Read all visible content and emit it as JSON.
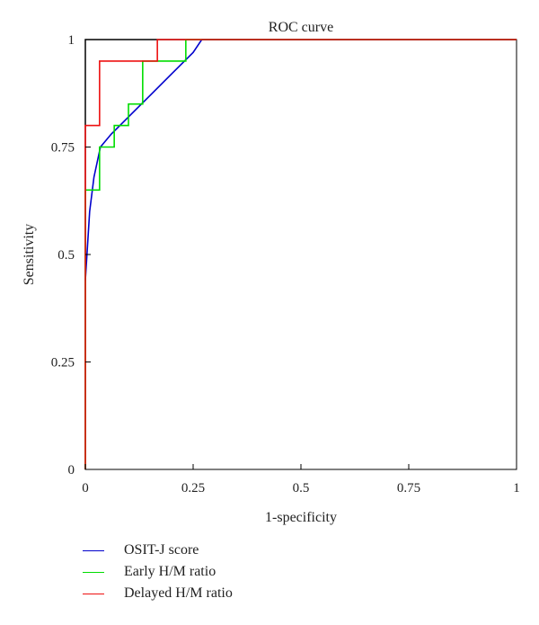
{
  "chart_data": {
    "type": "line",
    "title": "ROC curve",
    "xlabel": "1-specificity",
    "ylabel": "Sensitivity",
    "xlim": [
      0,
      1
    ],
    "ylim": [
      0,
      1
    ],
    "x_ticks": [
      0,
      0.25,
      0.5,
      0.75,
      1
    ],
    "y_ticks": [
      0,
      0.25,
      0.5,
      0.75,
      1
    ],
    "x_tick_labels": [
      "0",
      "0.25",
      "0.5",
      "0.75",
      "1"
    ],
    "y_tick_labels": [
      "0",
      "0.25",
      "0.5",
      "0.75",
      "1"
    ],
    "grid": false,
    "legend_position": "bottom-left",
    "reference_curve": {
      "color": "#000000",
      "points": [
        [
          0,
          0
        ],
        [
          0,
          1
        ],
        [
          1,
          1
        ]
      ]
    },
    "series": [
      {
        "name": "OSIT-J score",
        "color": "#0000cc",
        "points": [
          [
            0,
            0.44
          ],
          [
            0.01,
            0.6
          ],
          [
            0.02,
            0.68
          ],
          [
            0.035,
            0.75
          ],
          [
            0.06,
            0.78
          ],
          [
            0.1,
            0.82
          ],
          [
            0.15,
            0.87
          ],
          [
            0.2,
            0.92
          ],
          [
            0.25,
            0.97
          ],
          [
            0.27,
            1.0
          ],
          [
            1,
            1.0
          ]
        ]
      },
      {
        "name": "Early H/M ratio",
        "color": "#00dd00",
        "points": [
          [
            0,
            0
          ],
          [
            0,
            0.65
          ],
          [
            0.033,
            0.65
          ],
          [
            0.033,
            0.75
          ],
          [
            0.067,
            0.75
          ],
          [
            0.067,
            0.8
          ],
          [
            0.1,
            0.8
          ],
          [
            0.1,
            0.85
          ],
          [
            0.133,
            0.85
          ],
          [
            0.133,
            0.95
          ],
          [
            0.233,
            0.95
          ],
          [
            0.233,
            1.0
          ],
          [
            1,
            1.0
          ]
        ]
      },
      {
        "name": "Delayed H/M ratio",
        "color": "#ee1111",
        "points": [
          [
            0,
            0
          ],
          [
            0,
            0.8
          ],
          [
            0.033,
            0.8
          ],
          [
            0.033,
            0.95
          ],
          [
            0.167,
            0.95
          ],
          [
            0.167,
            1.0
          ],
          [
            1,
            1.0
          ]
        ]
      }
    ]
  }
}
